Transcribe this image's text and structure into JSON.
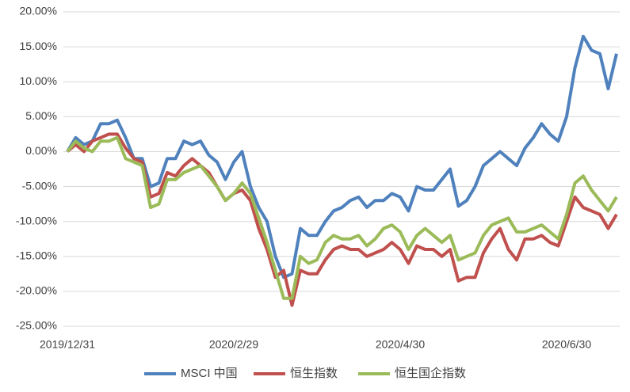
{
  "chart_data": {
    "type": "line",
    "categories": [
      "2019/12/31",
      null,
      null,
      null,
      null,
      null,
      null,
      null,
      null,
      null,
      null,
      null,
      null,
      null,
      null,
      null,
      null,
      null,
      null,
      null,
      "2020/2/29",
      null,
      null,
      null,
      null,
      null,
      null,
      null,
      null,
      null,
      null,
      null,
      null,
      null,
      null,
      null,
      null,
      null,
      null,
      null,
      "2020/4/30",
      null,
      null,
      null,
      null,
      null,
      null,
      null,
      null,
      null,
      null,
      null,
      null,
      null,
      null,
      null,
      null,
      null,
      null,
      null,
      "2020/6/30",
      null,
      null,
      null,
      null,
      null,
      null
    ],
    "series": [
      {
        "name": "MSCI 中国",
        "color": "#4f81bd",
        "values": [
          0,
          2,
          1,
          1.5,
          4,
          4,
          4.5,
          2,
          -1,
          -1,
          -5,
          -4.5,
          -1,
          -1,
          1.5,
          1,
          1.5,
          -0.5,
          -1.5,
          -4,
          -1.5,
          0,
          -5,
          -8,
          -10,
          -15,
          -18,
          -17.5,
          -11,
          -12,
          -12,
          -10,
          -8.5,
          -8,
          -7,
          -6.5,
          -8,
          -7,
          -7,
          -6,
          -6.5,
          -8.5,
          -5,
          -5.5,
          -5.5,
          -4,
          -2.5,
          -7.8,
          -7,
          -5,
          -2,
          -1,
          0,
          -1,
          -2,
          0.5,
          2,
          4,
          2.5,
          1.5,
          5,
          12,
          16.5,
          14.5,
          14,
          9,
          14
        ]
      },
      {
        "name": "恒生指数",
        "color": "#c0504d",
        "values": [
          0,
          1,
          0,
          1.5,
          2,
          2.5,
          2.5,
          0.5,
          -1,
          -1.5,
          -6.5,
          -6,
          -3,
          -3.5,
          -2,
          -1,
          -2,
          -3,
          -5,
          -7,
          -6,
          -5.5,
          -7,
          -11,
          -14,
          -18,
          -17,
          -22,
          -17,
          -17.5,
          -17.5,
          -15.5,
          -14,
          -13.5,
          -14,
          -14,
          -15,
          -14.5,
          -14,
          -13,
          -14,
          -16,
          -13.5,
          -14,
          -14,
          -15,
          -14,
          -18.5,
          -18,
          -18,
          -14.5,
          -12.5,
          -11,
          -14,
          -15.5,
          -12.5,
          -12.5,
          -12,
          -13,
          -13.5,
          -10,
          -6.5,
          -8,
          -8.5,
          -9,
          -11,
          -9
        ]
      },
      {
        "name": "恒生国企指数",
        "color": "#9bbb59",
        "values": [
          0,
          1.5,
          0.5,
          0,
          1.5,
          1.5,
          2,
          -1,
          -1.5,
          -2,
          -8,
          -7.5,
          -4,
          -4,
          -3,
          -2.5,
          -2,
          -3.5,
          -5,
          -7,
          -6,
          -4.5,
          -6,
          -9.5,
          -13,
          -17,
          -21,
          -21,
          -15,
          -16,
          -15.5,
          -13,
          -12,
          -12.5,
          -12.5,
          -12,
          -13.5,
          -12.5,
          -11,
          -10.5,
          -11.5,
          -14,
          -12,
          -11,
          -12,
          -13,
          -12,
          -15.5,
          -15,
          -14.5,
          -12,
          -10.5,
          -10,
          -9.5,
          -11.5,
          -11.5,
          -11,
          -10.5,
          -11.5,
          -12.5,
          -9,
          -4.5,
          -3.5,
          -5.5,
          -7,
          -8.5,
          -6.5
        ]
      }
    ],
    "ylim": [
      -25,
      20
    ],
    "yticks": [
      {
        "value": 20,
        "label": "20.00%"
      },
      {
        "value": 15,
        "label": "15.00%"
      },
      {
        "value": 10,
        "label": "10.00%"
      },
      {
        "value": 5,
        "label": "5.00%"
      },
      {
        "value": 0,
        "label": "0.00%"
      },
      {
        "value": -5,
        "label": "-5.00%"
      },
      {
        "value": -10,
        "label": "-10.00%"
      },
      {
        "value": -15,
        "label": "-15.00%"
      },
      {
        "value": -20,
        "label": "-20.00%"
      },
      {
        "value": -25,
        "label": "-25.00%"
      }
    ],
    "grid": true,
    "legend": "bottom"
  }
}
